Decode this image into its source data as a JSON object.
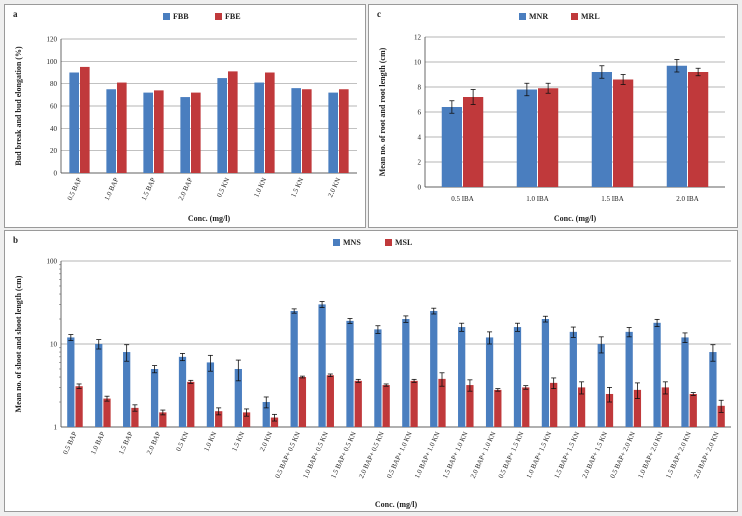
{
  "chart_data": [
    {
      "id": "a",
      "panel_label": "a",
      "type": "bar",
      "ylabel": "Bud break and bud elongation (%)",
      "xlabel": "Conc. (mg/l)",
      "ylim": [
        0,
        120
      ],
      "yticks": [
        "0",
        "20",
        "40",
        "60",
        "80",
        "100",
        "120"
      ],
      "grid": true,
      "legend_position": "top",
      "categories": [
        "0.5 BAP",
        "1.0 BAP",
        "1.5 BAP",
        "2.0 BAP",
        "0.5 KN",
        "1.0 KN",
        "1.5 KN",
        "2.0 KN"
      ],
      "series": [
        {
          "name": "FBB",
          "color": "#4a7ebf",
          "values": [
            90,
            75,
            72,
            68,
            85,
            81,
            76,
            72
          ]
        },
        {
          "name": "FBE",
          "color": "#c0393b",
          "values": [
            95,
            81,
            74,
            72,
            91,
            90,
            75,
            75
          ]
        }
      ]
    },
    {
      "id": "c",
      "panel_label": "c",
      "type": "bar",
      "ylabel": "Mean no. of root and root length (cm)",
      "xlabel": "Conc. (mg/l)",
      "ylim": [
        0,
        12
      ],
      "yticks": [
        "0",
        "2",
        "4",
        "6",
        "8",
        "10",
        "12"
      ],
      "grid": true,
      "legend_position": "top",
      "categories": [
        "0.5 IBA",
        "1.0 IBA",
        "1.5 IBA",
        "2.0 IBA"
      ],
      "series": [
        {
          "name": "MNR",
          "color": "#4a7ebf",
          "values": [
            6.4,
            7.8,
            9.2,
            9.7
          ],
          "errors": [
            0.5,
            0.5,
            0.5,
            0.5
          ]
        },
        {
          "name": "MRL",
          "color": "#c0393b",
          "values": [
            7.2,
            7.9,
            8.6,
            9.2
          ],
          "errors": [
            0.6,
            0.4,
            0.4,
            0.3
          ]
        }
      ]
    },
    {
      "id": "b",
      "panel_label": "b",
      "type": "bar",
      "scale": "log",
      "ylabel": "Mean no. of shoot and shoot length (cm)",
      "xlabel": "Conc. (mg/l)",
      "ylim": [
        1,
        100
      ],
      "yticks": [
        "1",
        "10",
        "100"
      ],
      "grid": true,
      "legend_position": "top",
      "categories": [
        "0.5 BAP",
        "1.0 BAP",
        "1.5 BAP",
        "2.0 BAP",
        "0.5 KN",
        "1.0 KN",
        "1.5 KN",
        "2.0 KN",
        "0.5 BAP+ 0.5 KN",
        "1.0 BAP+ 0.5 KN",
        "1.5 BAP+ 0.5 KN",
        "2.0 BAP+ 0.5 KN",
        "0.5 BAP+ 1.0 KN",
        "1.0 BAP+ 1.0 KN",
        "1.5 BAP+ 1.0 KN",
        "2.0 BAP+ 1.0 KN",
        "0.5 BAP+ 1.5 KN",
        "1.0 BAP+ 1.5 KN",
        "1.5 BAP+ 1.5 KN",
        "2.0 BAP+ 1.5 KN",
        "0.5 BAP+ 2.0 KN",
        "1.0 BAP+ 2.0 KN",
        "1.5 BAP+ 2.0 KN",
        "2.0 BAP+ 2.0 KN"
      ],
      "series": [
        {
          "name": "MNS",
          "color": "#4a7ebf",
          "values": [
            12,
            10,
            8,
            5,
            7,
            6,
            5,
            2,
            25,
            30,
            19,
            15,
            20,
            25,
            16,
            12,
            16,
            20,
            14,
            10,
            14,
            18,
            12,
            8
          ],
          "errors": [
            1,
            1.3,
            1.8,
            0.5,
            0.7,
            1.3,
            1.4,
            0.3,
            1.5,
            2.5,
            1.3,
            1.6,
            1.8,
            2,
            1.8,
            2,
            1.8,
            1.6,
            2,
            2.2,
            1.8,
            1.8,
            1.6,
            1.8
          ]
        },
        {
          "name": "MSL",
          "color": "#c0393b",
          "values": [
            3.1,
            2.2,
            1.7,
            1.5,
            3.5,
            1.55,
            1.5,
            1.3,
            4.0,
            4.2,
            3.6,
            3.2,
            3.6,
            3.8,
            3.2,
            2.8,
            3.0,
            3.4,
            3.0,
            2.5,
            2.8,
            3.0,
            2.5,
            1.8
          ],
          "errors": [
            0.2,
            0.15,
            0.15,
            0.1,
            0.15,
            0.15,
            0.15,
            0.12,
            0.1,
            0.15,
            0.15,
            0.1,
            0.15,
            0.7,
            0.5,
            0.1,
            0.15,
            0.5,
            0.5,
            0.5,
            0.6,
            0.5,
            0.1,
            0.3
          ]
        }
      ]
    }
  ]
}
